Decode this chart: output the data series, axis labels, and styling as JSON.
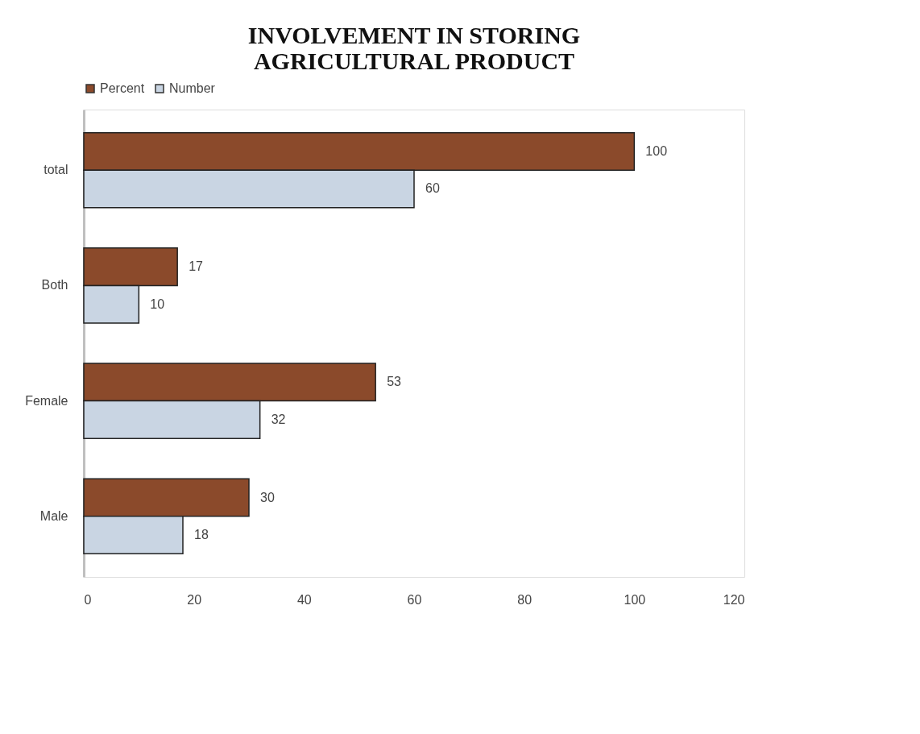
{
  "chart_data": {
    "type": "bar",
    "orientation": "horizontal",
    "title": "INVOLVEMENT IN STORING AGRICULTURAL PRODUCT",
    "categories": [
      "total",
      "Both",
      "Female",
      "Male"
    ],
    "series": [
      {
        "name": "Percent",
        "color": "#8b4a2b",
        "values": [
          100,
          17,
          53,
          30
        ]
      },
      {
        "name": "Number",
        "color": "#c9d5e3",
        "values": [
          60,
          10,
          32,
          18
        ]
      }
    ],
    "xlim": [
      0,
      120
    ],
    "xticks": [
      0,
      20,
      40,
      60,
      80,
      100,
      120
    ],
    "grid": false,
    "legend": "top",
    "data_labels": true
  }
}
